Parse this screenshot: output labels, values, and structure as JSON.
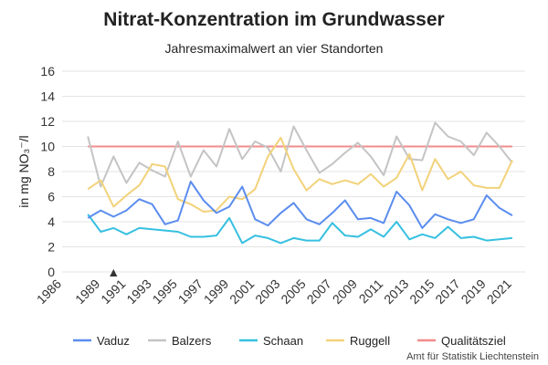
{
  "chart_data": {
    "type": "line",
    "title": "Nitrat-Konzentration im Grundwasser",
    "subtitle": "Jahresmaximalwert an vier Standorten",
    "ylabel": "in mg NO₃⁻/l",
    "xlabel": "",
    "ylim": [
      0,
      16
    ],
    "yticks": [
      0,
      2,
      4,
      6,
      8,
      10,
      12,
      14,
      16
    ],
    "xlim": [
      1986,
      2022
    ],
    "xticks": [
      1986,
      1989,
      1991,
      1993,
      1995,
      1997,
      1999,
      2001,
      2003,
      2005,
      2007,
      2009,
      2011,
      2013,
      2015,
      2017,
      2019,
      2021
    ],
    "grid": "horizontal",
    "legend": "bottom",
    "marker": {
      "year": 1990,
      "value": 0,
      "symbol": "▲"
    },
    "x": [
      1988,
      1989,
      1990,
      1991,
      1992,
      1993,
      1994,
      1995,
      1996,
      1997,
      1998,
      1999,
      2000,
      2001,
      2002,
      2003,
      2004,
      2005,
      2006,
      2007,
      2008,
      2009,
      2010,
      2011,
      2012,
      2013,
      2014,
      2015,
      2016,
      2017,
      2018,
      2019,
      2020,
      2021
    ],
    "series": [
      {
        "name": "Vaduz",
        "color": "#5b8def",
        "values": [
          4.3,
          4.9,
          4.4,
          4.9,
          5.8,
          5.4,
          3.8,
          4.1,
          7.2,
          5.7,
          4.7,
          5.2,
          6.8,
          4.2,
          3.7,
          4.7,
          5.5,
          4.2,
          3.8,
          4.7,
          5.7,
          4.2,
          4.3,
          3.9,
          6.4,
          5.3,
          3.5,
          4.6,
          4.2,
          3.9,
          4.2,
          6.1,
          5.1,
          4.5
        ]
      },
      {
        "name": "Balzers",
        "color": "#c4c4c4",
        "values": [
          10.8,
          6.8,
          9.2,
          7.1,
          8.7,
          8.1,
          7.6,
          10.4,
          7.6,
          9.7,
          8.4,
          11.4,
          9.0,
          10.4,
          9.9,
          8.0,
          11.6,
          9.7,
          7.9,
          8.6,
          9.5,
          10.3,
          9.2,
          7.7,
          10.8,
          9.0,
          8.9,
          11.9,
          10.8,
          10.4,
          9.3,
          11.1,
          10.0,
          8.7
        ]
      },
      {
        "name": "Schaan",
        "color": "#36c0e0",
        "values": [
          4.6,
          3.2,
          3.5,
          3.0,
          3.5,
          3.4,
          3.3,
          3.2,
          2.8,
          2.8,
          2.9,
          4.3,
          2.3,
          2.9,
          2.7,
          2.3,
          2.7,
          2.5,
          2.5,
          3.9,
          2.9,
          2.8,
          3.4,
          2.8,
          4.0,
          2.6,
          3.0,
          2.7,
          3.6,
          2.7,
          2.8,
          2.5,
          2.6,
          2.7
        ]
      },
      {
        "name": "Ruggell",
        "color": "#f2d27a",
        "values": [
          6.6,
          7.3,
          5.2,
          6.1,
          6.9,
          8.6,
          8.4,
          5.8,
          5.4,
          4.8,
          4.9,
          6.0,
          5.8,
          6.6,
          9.2,
          10.7,
          8.2,
          6.5,
          7.4,
          7.0,
          7.3,
          7.0,
          7.8,
          6.8,
          7.5,
          9.4,
          6.5,
          9.0,
          7.4,
          8.0,
          6.9,
          6.7,
          6.7,
          8.9
        ]
      },
      {
        "name": "Qualitätsziel",
        "color": "#f28b8b",
        "values": [
          10,
          10,
          10,
          10,
          10,
          10,
          10,
          10,
          10,
          10,
          10,
          10,
          10,
          10,
          10,
          10,
          10,
          10,
          10,
          10,
          10,
          10,
          10,
          10,
          10,
          10,
          10,
          10,
          10,
          10,
          10,
          10,
          10,
          10
        ]
      }
    ],
    "source": "Amt für Statistik Liechtenstein"
  }
}
